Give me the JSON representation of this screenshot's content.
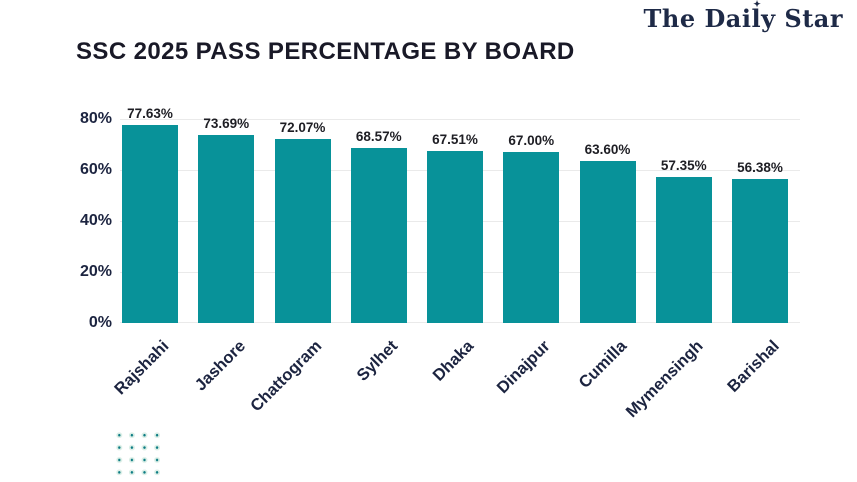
{
  "logo": {
    "text": "The Daily Star",
    "star_glyph": "✦"
  },
  "title": "SSC 2025 PASS PERCENTAGE BY BOARD",
  "colors": {
    "bar": "#089299",
    "gridline": "#eaeaea",
    "title": "#191927",
    "logo": "#1e2a47",
    "axis_label": "#1c2440",
    "value_label": "#1e1e24",
    "dot": "#0b7b83",
    "dot_halo": "#dcefe7"
  },
  "chart_data": {
    "type": "bar",
    "title": "SSC 2025 PASS PERCENTAGE BY BOARD",
    "categories": [
      "Rajshahi",
      "Jashore",
      "Chattogram",
      "Sylhet",
      "Dhaka",
      "Dinajpur",
      "Cumilla",
      "Mymensingh",
      "Barishal"
    ],
    "values": [
      77.63,
      73.69,
      72.07,
      68.57,
      67.51,
      67.0,
      63.6,
      57.35,
      56.38
    ],
    "value_labels": [
      "77.63%",
      "73.69%",
      "72.07%",
      "68.57%",
      "67.51%",
      "67.00%",
      "63.60%",
      "57.35%",
      "56.38%"
    ],
    "xlabel": "",
    "ylabel": "",
    "yticks": [
      "0%",
      "20%",
      "40%",
      "60%",
      "80%"
    ],
    "ytick_values": [
      0,
      20,
      40,
      60,
      80
    ],
    "ylim": [
      0,
      80
    ],
    "grid": "horizontal",
    "bar_color": "#089299",
    "x_label_rotation_deg": -45,
    "legend_position": "none"
  }
}
